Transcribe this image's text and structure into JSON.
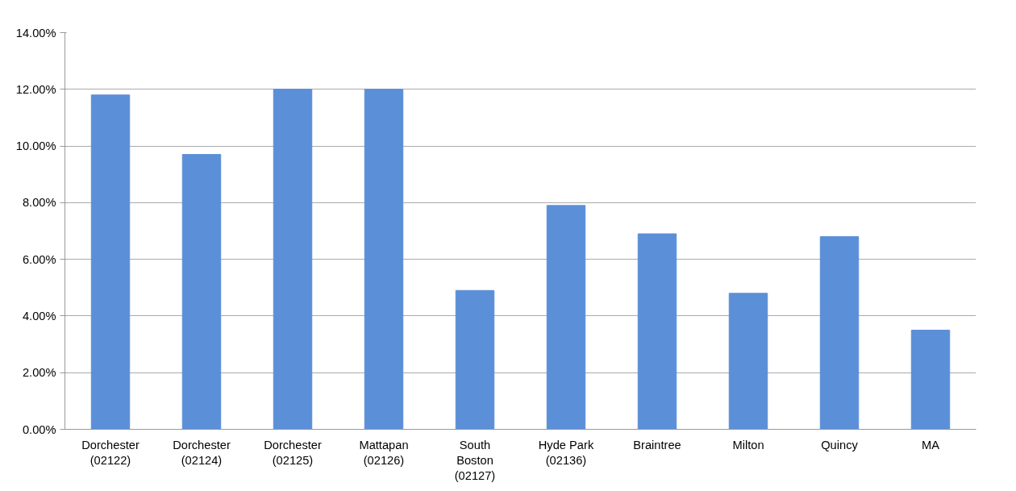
{
  "chart_data": {
    "type": "bar",
    "categories": [
      "Dorchester\n(02122)",
      "Dorchester\n(02124)",
      "Dorchester\n(02125)",
      "Mattapan\n(02126)",
      "South\nBoston\n(02127)",
      "Hyde Park\n(02136)",
      "Braintree",
      "Milton",
      "Quincy",
      "MA"
    ],
    "values": [
      11.8,
      9.7,
      12.0,
      12.0,
      4.9,
      7.9,
      6.9,
      4.8,
      6.8,
      3.5
    ],
    "color": "#5b8fd8",
    "ylim": [
      0,
      14
    ],
    "yticks": [
      {
        "value": 0,
        "label": "0.00%"
      },
      {
        "value": 2,
        "label": "2.00%"
      },
      {
        "value": 4,
        "label": "4.00%"
      },
      {
        "value": 6,
        "label": "6.00%"
      },
      {
        "value": 8,
        "label": "8.00%"
      },
      {
        "value": 10,
        "label": "10.00%"
      },
      {
        "value": 12,
        "label": "12.00%"
      },
      {
        "value": 14,
        "label": "14.00%"
      }
    ],
    "grid": "y"
  }
}
